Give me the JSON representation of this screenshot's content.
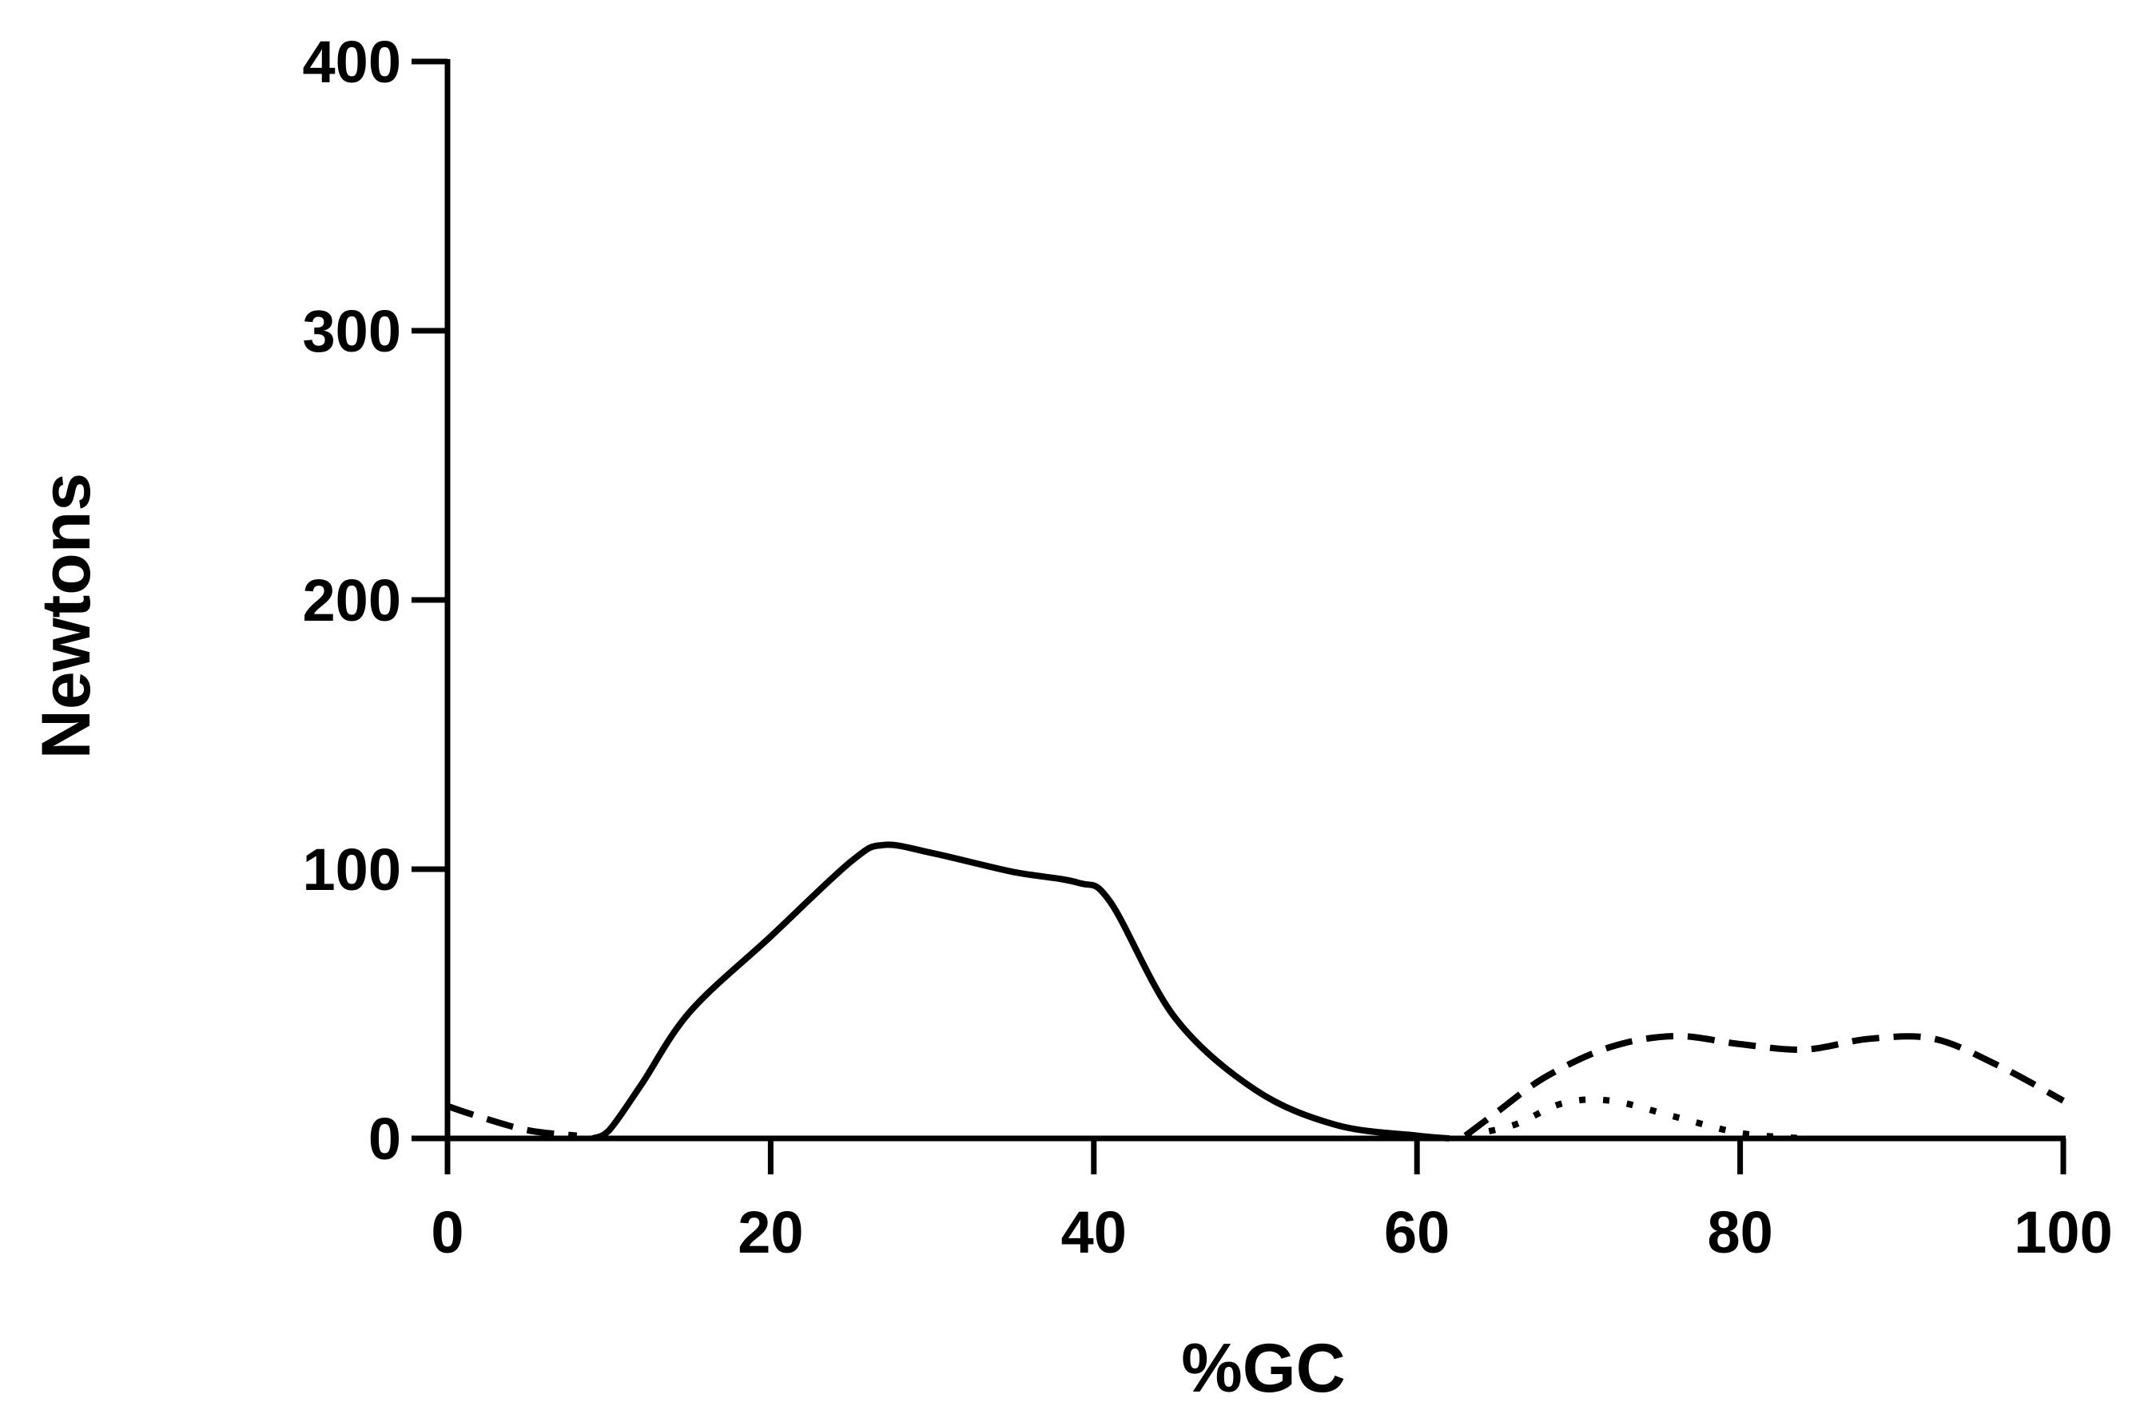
{
  "chart_data": {
    "type": "line",
    "title": "",
    "xlabel": "%GC",
    "ylabel": "Newtons",
    "xlim": [
      0,
      100
    ],
    "ylim": [
      0,
      400
    ],
    "xticks": [
      0,
      20,
      40,
      60,
      80,
      100
    ],
    "yticks": [
      0,
      100,
      200,
      300,
      400
    ],
    "grid": false,
    "legend": "none",
    "series": [
      {
        "style": "solid",
        "x": [
          9,
          10,
          12,
          15,
          20,
          25,
          27,
          30,
          35,
          39,
          41,
          45,
          50,
          55,
          60,
          62
        ],
        "y": [
          0,
          3,
          20,
          47,
          75,
          103,
          109,
          106,
          99,
          95,
          88,
          45,
          18,
          5,
          1,
          0
        ]
      },
      {
        "style": "dashed",
        "x": [
          0,
          2,
          5,
          8,
          63,
          65,
          68,
          72,
          76,
          80,
          84,
          88,
          92,
          96,
          100
        ],
        "y": [
          12,
          8,
          3,
          1,
          1,
          10,
          23,
          34,
          38,
          35,
          33,
          37,
          37,
          27,
          14
        ]
      },
      {
        "style": "dotted",
        "x": [
          63,
          66,
          69,
          72,
          76,
          80,
          84
        ],
        "y": [
          1,
          5,
          13,
          14,
          8,
          2,
          0
        ]
      }
    ]
  }
}
